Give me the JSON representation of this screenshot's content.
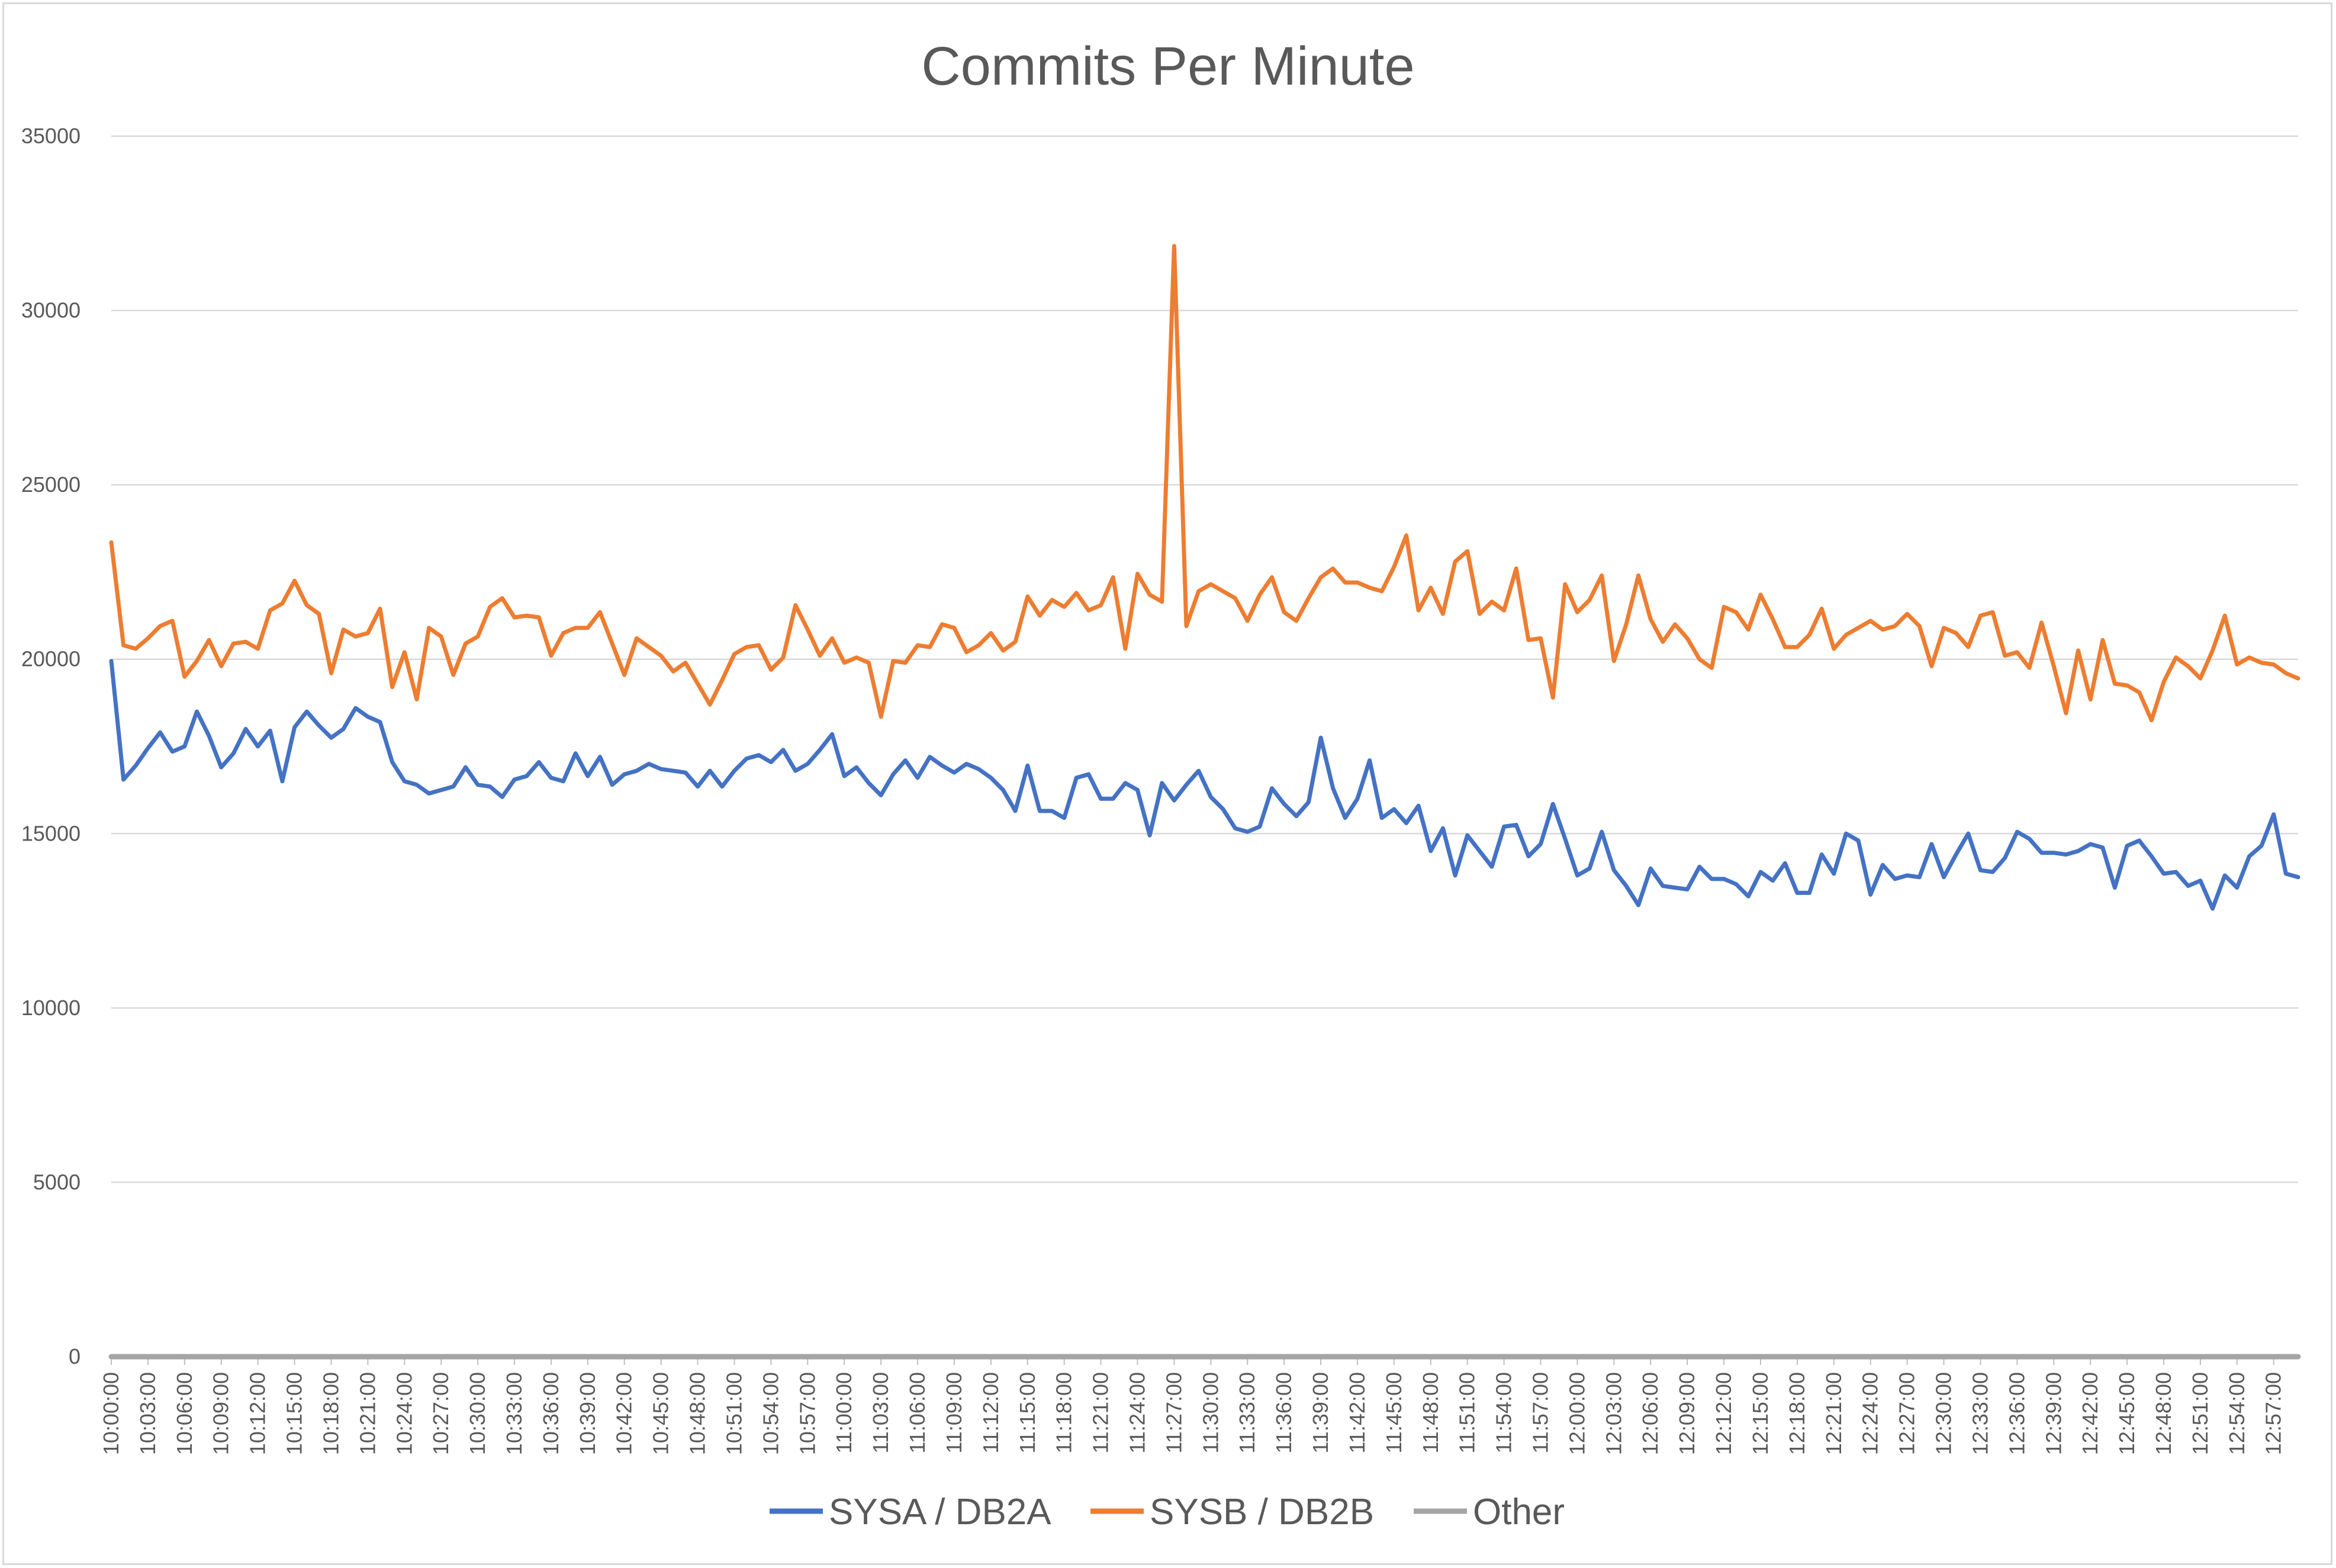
{
  "chart_data": {
    "type": "line",
    "title": "Commits Per Minute",
    "xlabel": "",
    "ylabel": "",
    "ylim": [
      0,
      35000
    ],
    "yticks": [
      0,
      5000,
      10000,
      15000,
      20000,
      25000,
      30000,
      35000
    ],
    "grid": true,
    "legend_position": "bottom",
    "x_start": "10:00:00",
    "x_interval_minutes": 1,
    "x_tick_every": 3,
    "x_tick_labels": [
      "10:00:00",
      "10:03:00",
      "10:06:00",
      "10:09:00",
      "10:12:00",
      "10:15:00",
      "10:18:00",
      "10:21:00",
      "10:24:00",
      "10:27:00",
      "10:30:00",
      "10:33:00",
      "10:36:00",
      "10:39:00",
      "10:42:00",
      "10:45:00",
      "10:48:00",
      "10:51:00",
      "10:54:00",
      "10:57:00",
      "11:00:00",
      "11:03:00",
      "11:06:00",
      "11:09:00",
      "11:12:00",
      "11:15:00",
      "11:18:00",
      "11:21:00",
      "11:24:00",
      "11:27:00",
      "11:30:00",
      "11:33:00",
      "11:36:00",
      "11:39:00",
      "11:42:00",
      "11:45:00",
      "11:48:00",
      "11:51:00",
      "11:54:00",
      "11:57:00",
      "12:00:00",
      "12:03:00",
      "12:06:00",
      "12:09:00",
      "12:12:00",
      "12:15:00",
      "12:18:00",
      "12:21:00",
      "12:24:00",
      "12:27:00",
      "12:30:00",
      "12:33:00",
      "12:36:00",
      "12:39:00",
      "12:42:00",
      "12:45:00",
      "12:48:00",
      "12:51:00",
      "12:54:00",
      "12:57:00"
    ],
    "series": [
      {
        "name": "SYSA / DB2A",
        "color": "#4472c4",
        "values": [
          19950,
          16550,
          16950,
          17450,
          17900,
          17350,
          17500,
          18500,
          17800,
          16900,
          17300,
          18000,
          17500,
          17950,
          16500,
          18050,
          18500,
          18100,
          17750,
          18000,
          18600,
          18350,
          18200,
          17050,
          16500,
          16400,
          16150,
          16250,
          16350,
          16900,
          16400,
          16350,
          16050,
          16550,
          16650,
          17050,
          16600,
          16500,
          17300,
          16650,
          17200,
          16400,
          16700,
          16800,
          17000,
          16850,
          16800,
          16750,
          16350,
          16800,
          16350,
          16800,
          17150,
          17250,
          17050,
          17400,
          16800,
          17000,
          17400,
          17850,
          16650,
          16900,
          16450,
          16100,
          16700,
          17100,
          16600,
          17200,
          16950,
          16750,
          17000,
          16850,
          16600,
          16250,
          15650,
          16950,
          15650,
          15650,
          15450,
          16600,
          16700,
          16000,
          16000,
          16450,
          16250,
          14950,
          16450,
          15950,
          16400,
          16800,
          16050,
          15700,
          15150,
          15050,
          15200,
          16300,
          15850,
          15500,
          15900,
          17750,
          16300,
          15450,
          16000,
          17100,
          15450,
          15700,
          15300,
          15800,
          14500,
          15150,
          13800,
          14950,
          14500,
          14050,
          15200,
          15250,
          14350,
          14700,
          15850,
          14850,
          13800,
          14000,
          15050,
          13950,
          13500,
          12950,
          14000,
          13500,
          13450,
          13400,
          14050,
          13700,
          13700,
          13550,
          13200,
          13900,
          13650,
          14150,
          13300,
          13300,
          14400,
          13850,
          15000,
          14800,
          13250,
          14100,
          13700,
          13800,
          13750,
          14700,
          13750,
          14400,
          15000,
          13950,
          13900,
          14300,
          15050,
          14850,
          14450,
          14450,
          14400,
          14500,
          14700,
          14600,
          13450,
          14650,
          14800,
          14350,
          13850,
          13900,
          13500,
          13650,
          12850,
          13800,
          13450,
          14350,
          14650,
          15550,
          13850,
          13750
        ]
      },
      {
        "name": "SYSB / DB2B",
        "color": "#ed7d31",
        "values": [
          23350,
          20400,
          20300,
          20600,
          20950,
          21100,
          19500,
          19950,
          20550,
          19800,
          20450,
          20500,
          20300,
          21400,
          21600,
          22250,
          21550,
          21300,
          19600,
          20850,
          20650,
          20750,
          21450,
          19200,
          20200,
          18850,
          20900,
          20650,
          19550,
          20450,
          20650,
          21500,
          21750,
          21200,
          21250,
          21200,
          20100,
          20750,
          20900,
          20900,
          21350,
          20450,
          19550,
          20600,
          20350,
          20100,
          19650,
          19900,
          19300,
          18700,
          19400,
          20150,
          20350,
          20400,
          19700,
          20050,
          21550,
          20850,
          20100,
          20600,
          19900,
          20050,
          19900,
          18350,
          19950,
          19900,
          20400,
          20350,
          21000,
          20900,
          20200,
          20400,
          20750,
          20250,
          20500,
          21800,
          21250,
          21700,
          21500,
          21900,
          21400,
          21550,
          22350,
          20300,
          22450,
          21850,
          21650,
          31850,
          20950,
          21950,
          22150,
          21950,
          21750,
          21100,
          21850,
          22350,
          21350,
          21100,
          21750,
          22350,
          22600,
          22200,
          22200,
          22050,
          21950,
          22650,
          23550,
          21400,
          22050,
          21300,
          22800,
          23100,
          21300,
          21650,
          21400,
          22600,
          20550,
          20600,
          18900,
          22150,
          21350,
          21700,
          22400,
          19950,
          21000,
          22400,
          21150,
          20500,
          21000,
          20600,
          20000,
          19750,
          21500,
          21350,
          20850,
          21850,
          21150,
          20350,
          20350,
          20700,
          21450,
          20300,
          20700,
          20900,
          21100,
          20850,
          20950,
          21300,
          20950,
          19800,
          20900,
          20750,
          20350,
          21250,
          21350,
          20100,
          20200,
          19750,
          21050,
          19800,
          18450,
          20250,
          18850,
          20550,
          19300,
          19250,
          19050,
          18250,
          19350,
          20050,
          19800,
          19450,
          20250,
          21250,
          19850,
          20050,
          19900,
          19850,
          19600,
          19450
        ]
      },
      {
        "name": "Other",
        "color": "#a5a5a5",
        "values": [
          0,
          0
        ]
      }
    ]
  }
}
